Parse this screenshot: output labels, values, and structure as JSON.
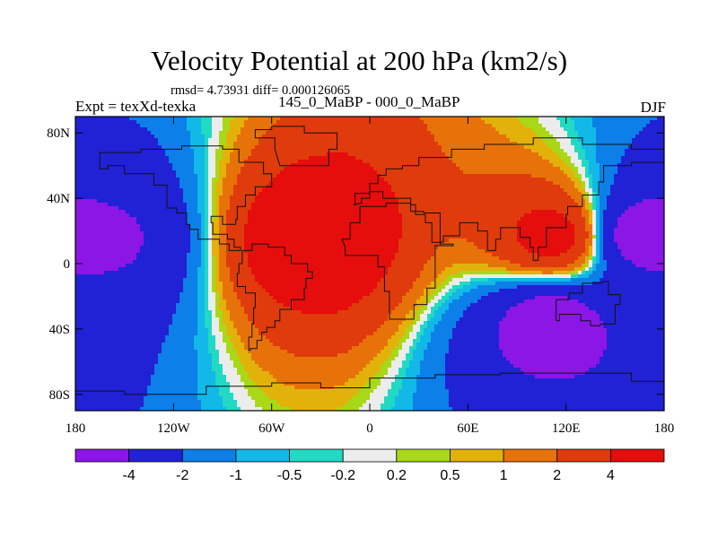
{
  "chart_data": {
    "type": "heatmap",
    "title": "Velocity Potential at 200 hPa (km2/s)",
    "stats": "rmsd= 4.73931 diff= 0.000126065",
    "left_label": "Expt = texXd-texka",
    "center_label": "145_0_MaBP - 000_0_MaBP",
    "right_label": "DJF",
    "x_axis": {
      "range": [
        -180,
        180
      ],
      "ticks": [
        {
          "value": -180,
          "label": "180"
        },
        {
          "value": -120,
          "label": "120W"
        },
        {
          "value": -60,
          "label": "60W"
        },
        {
          "value": 0,
          "label": "0"
        },
        {
          "value": 60,
          "label": "60E"
        },
        {
          "value": 120,
          "label": "120E"
        },
        {
          "value": 180,
          "label": "180"
        }
      ]
    },
    "y_axis": {
      "range": [
        -90,
        90
      ],
      "ticks": [
        {
          "value": 80,
          "label": "80N"
        },
        {
          "value": 40,
          "label": "40N"
        },
        {
          "value": 0,
          "label": "0"
        },
        {
          "value": -40,
          "label": "40S"
        },
        {
          "value": -80,
          "label": "80S"
        }
      ]
    },
    "contour_levels": [
      -4,
      -2,
      -1,
      -0.5,
      -0.2,
      0.2,
      0.5,
      1,
      2,
      4
    ],
    "colorbar_labels": [
      "-4",
      "-2",
      "-1",
      "-0.5",
      "-0.2",
      "0.2",
      "0.5",
      "1",
      "2",
      "4"
    ],
    "colors": [
      "#8b16e6",
      "#2121d6",
      "#0c7fe8",
      "#12b8e8",
      "#22d9c4",
      "#ececec",
      "#a9d818",
      "#e2b20a",
      "#e8720a",
      "#e03b0c",
      "#e60d0d"
    ],
    "field_centers": [
      {
        "lon": -35,
        "lat": 15,
        "value": 6.0
      },
      {
        "lon": 112,
        "lat": 17,
        "value": 5.0
      },
      {
        "lon": 165,
        "lat": 18,
        "value": -5.0
      },
      {
        "lon": -160,
        "lat": 15,
        "value": -4.2
      },
      {
        "lon": 110,
        "lat": -35,
        "value": -5.0
      }
    ]
  }
}
